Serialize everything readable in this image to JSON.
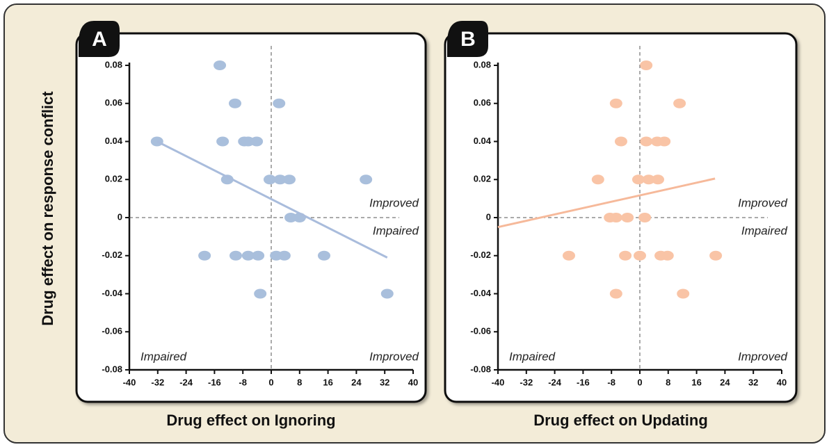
{
  "chart_data": [
    {
      "type": "scatter",
      "panel": "A",
      "xlabel": "Drug effect on Ignoring",
      "ylabel": "Drug effect on response conflict",
      "color": "#a9bfdc",
      "trend_color": "#a9bcdc",
      "xlim": [
        -40,
        40
      ],
      "xticks": [
        -40,
        -32,
        -24,
        -16,
        -8,
        0,
        8,
        16,
        24,
        32,
        40
      ],
      "ylim": [
        -0.08,
        0.08
      ],
      "yticks": [
        -0.08,
        -0.06,
        -0.04,
        -0.02,
        0,
        0.02,
        0.04,
        0.06,
        0.08
      ],
      "annotations": [
        "Improved",
        "Impaired",
        "Impaired",
        "Improved"
      ],
      "x": [
        -14.5,
        -10.2,
        2.2,
        -32.2,
        -13.7,
        -7.6,
        -6.5,
        -4.1,
        -12.4,
        -0.4,
        2.5,
        5.1,
        26.7,
        5.5,
        8.0,
        -18.8,
        -10,
        -6.5,
        -3.7,
        1.4,
        3.7,
        14.9,
        -3.1,
        32.7
      ],
      "y": [
        0.08,
        0.06,
        0.06,
        0.04,
        0.04,
        0.04,
        0.04,
        0.04,
        0.02,
        0.02,
        0.02,
        0.02,
        0.02,
        0,
        0,
        -0.02,
        -0.02,
        -0.02,
        -0.02,
        -0.02,
        -0.02,
        -0.02,
        -0.04,
        -0.04
      ],
      "trend": {
        "x": [
          -32.2,
          32.7
        ],
        "y": [
          0.04,
          -0.021
        ]
      }
    },
    {
      "type": "scatter",
      "panel": "B",
      "xlabel": "Drug effect on Updating",
      "color": "#f9c4a6",
      "trend_color": "#f6b99a",
      "xlim": [
        -40,
        40
      ],
      "xticks": [
        -40,
        -32,
        -24,
        -16,
        -8,
        0,
        8,
        16,
        24,
        32,
        40
      ],
      "ylim": [
        -0.08,
        0.08
      ],
      "yticks": [
        -0.08,
        -0.06,
        -0.04,
        -0.02,
        0,
        0.02,
        0.04,
        0.06,
        0.08
      ],
      "annotations": [
        "Improved",
        "Impaired",
        "Impaired",
        "Improved"
      ],
      "x": [
        1.8,
        -6.7,
        11.2,
        -5.3,
        1.8,
        4.9,
        6.9,
        -11.8,
        -0.4,
        2.5,
        5.1,
        -8.4,
        -6.7,
        -3.5,
        1.4,
        -20,
        -4.1,
        0,
        5.9,
        7.8,
        21.4,
        -6.7,
        12.2
      ],
      "y": [
        0.08,
        0.06,
        0.06,
        0.04,
        0.04,
        0.04,
        0.04,
        0.02,
        0.02,
        0.02,
        0.02,
        0,
        0,
        0,
        0,
        -0.02,
        -0.02,
        -0.02,
        -0.02,
        -0.02,
        -0.02,
        -0.04,
        -0.04
      ],
      "trend": {
        "x": [
          -40,
          21.2
        ],
        "y": [
          -0.005,
          0.0205
        ]
      }
    }
  ]
}
